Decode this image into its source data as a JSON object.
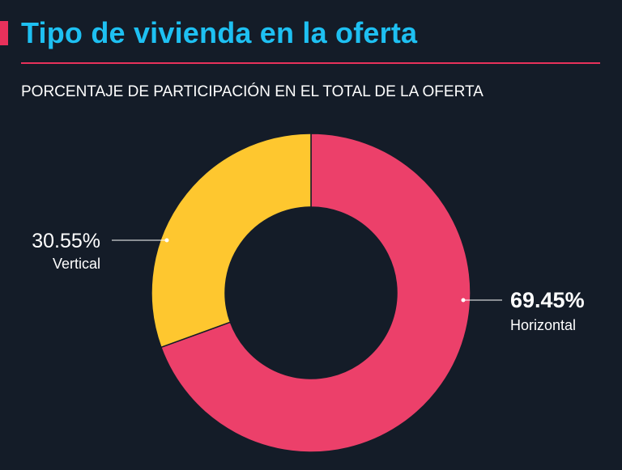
{
  "header": {
    "title": "Tipo de vivienda en la oferta",
    "subtitle": "PORCENTAJE DE PARTICIPACIÓN EN EL TOTAL DE LA OFERTA"
  },
  "chart_data": {
    "type": "pie",
    "title": "Tipo de vivienda en la oferta",
    "subtitle": "PORCENTAJE DE PARTICIPACIÓN EN EL TOTAL DE LA OFERTA",
    "donut": true,
    "categories": [
      "Horizontal",
      "Vertical"
    ],
    "values": [
      69.45,
      30.55
    ],
    "value_labels": [
      "69.45%",
      "30.55%"
    ],
    "colors": [
      "#ec406a",
      "#fec72f"
    ]
  },
  "colors": {
    "background": "#141c28",
    "title": "#1ec0f2",
    "accent": "#e8315b"
  }
}
